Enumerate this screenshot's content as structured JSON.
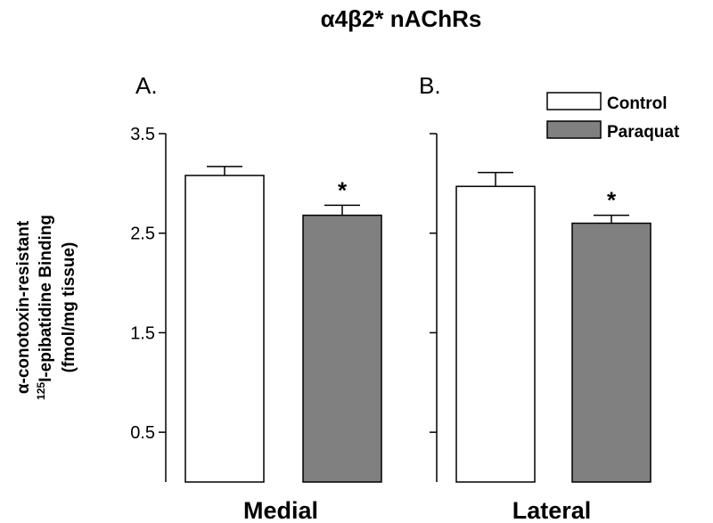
{
  "chart_data": {
    "type": "bar",
    "title": "α4β2* nAChRs",
    "ylabel_lines": [
      "α-conotoxin-resistant",
      "125",
      "I-epibatidine Binding",
      "(fmol/mg tissue)"
    ],
    "ylim": [
      0,
      3.5
    ],
    "yticks": [
      0.5,
      1.5,
      2.5,
      3.5
    ],
    "ytick_labels": [
      "0.5",
      "1.5",
      "2.5",
      "3.5"
    ],
    "legend": {
      "placement": "top-right",
      "entries": [
        {
          "name": "Control",
          "color": "#ffffff"
        },
        {
          "name": "Paraquat",
          "color": "#808080"
        }
      ]
    },
    "panels": [
      {
        "label": "A.",
        "category": "Medial",
        "series": [
          {
            "name": "Control",
            "value": 3.08,
            "error": 0.09,
            "significant": false
          },
          {
            "name": "Paraquat",
            "value": 2.68,
            "error": 0.1,
            "significant": true
          }
        ]
      },
      {
        "label": "B.",
        "category": "Lateral",
        "series": [
          {
            "name": "Control",
            "value": 2.97,
            "error": 0.14,
            "significant": false
          },
          {
            "name": "Paraquat",
            "value": 2.6,
            "error": 0.08,
            "significant": true
          }
        ]
      }
    ],
    "significance_marker": "*",
    "grid": false
  }
}
